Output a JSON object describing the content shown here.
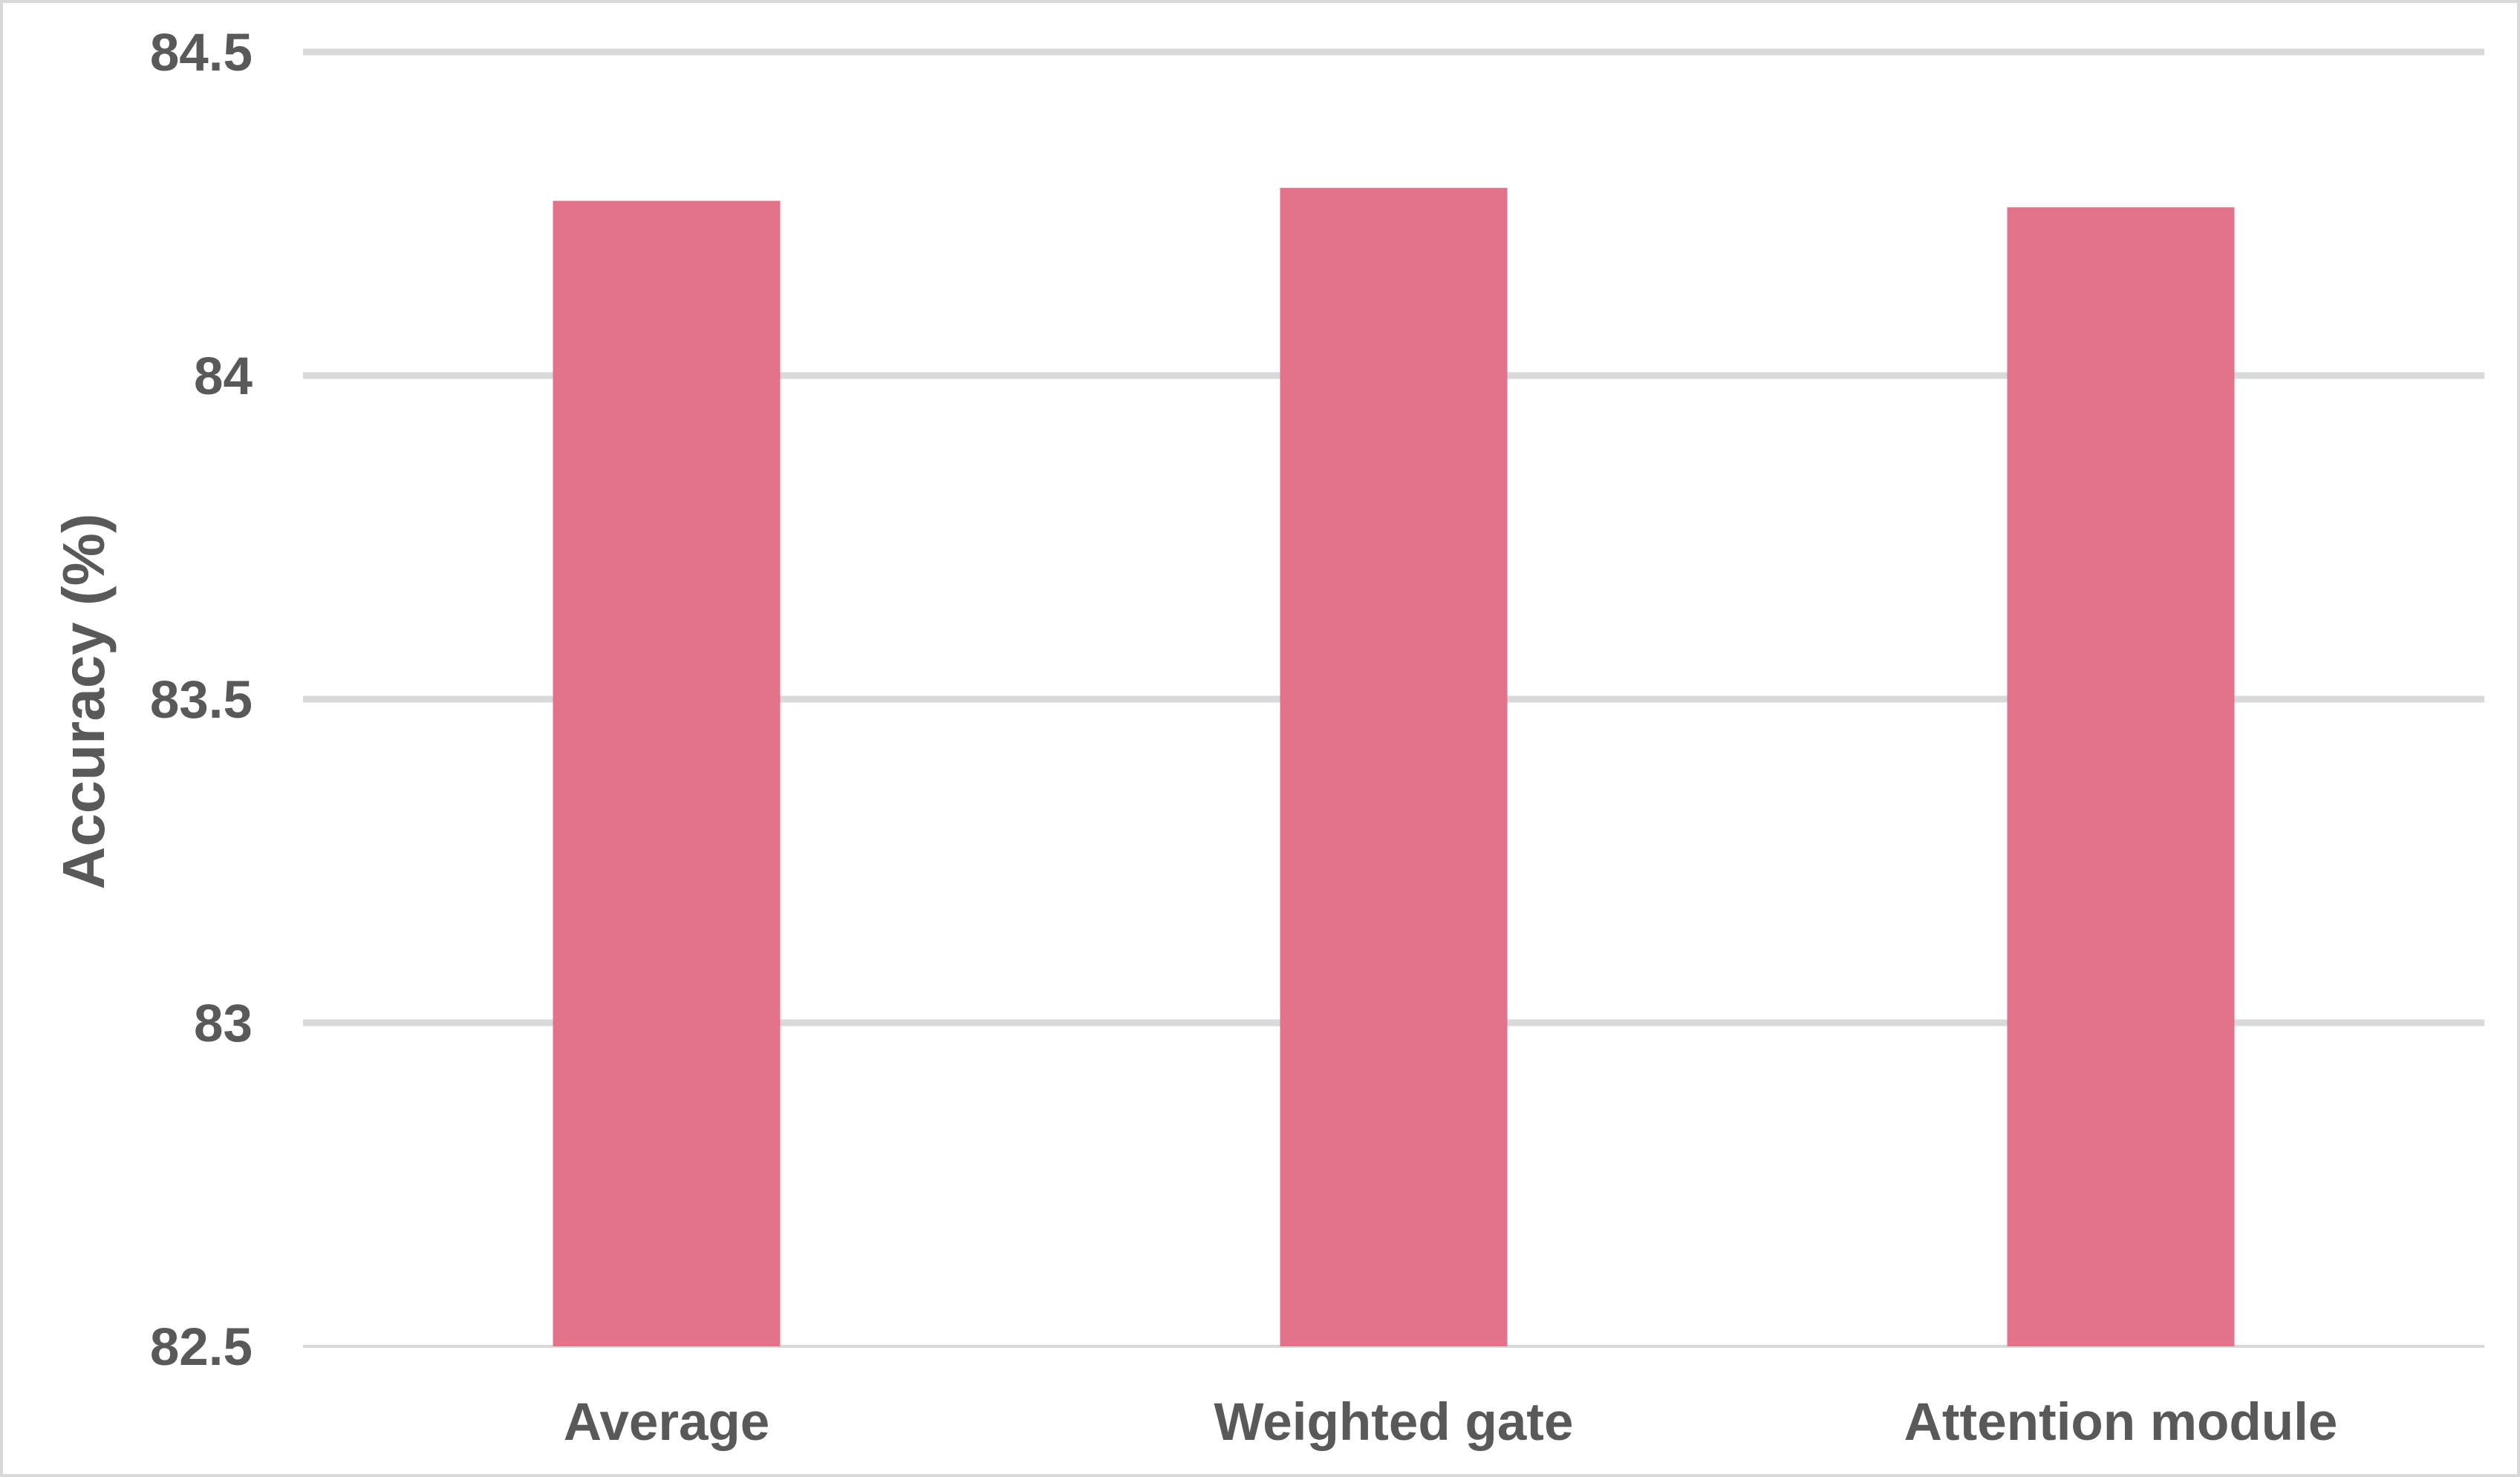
{
  "chart_data": {
    "type": "bar",
    "title": "",
    "xlabel": "",
    "ylabel": "Accuracy (%)",
    "categories": [
      "Average",
      "Weighted gate",
      "Attention module"
    ],
    "values": [
      84.27,
      84.29,
      84.26
    ],
    "ylim": [
      82.5,
      84.5
    ],
    "yticks": [
      82.5,
      83,
      83.5,
      84,
      84.5
    ],
    "ytick_labels": [
      "82.5",
      "83",
      "83.5",
      "84",
      "84.5"
    ],
    "grid": true,
    "legend": "none",
    "colors": {
      "bar": "#e3738a",
      "grid": "#d9d9d9",
      "text": "#595959"
    }
  }
}
